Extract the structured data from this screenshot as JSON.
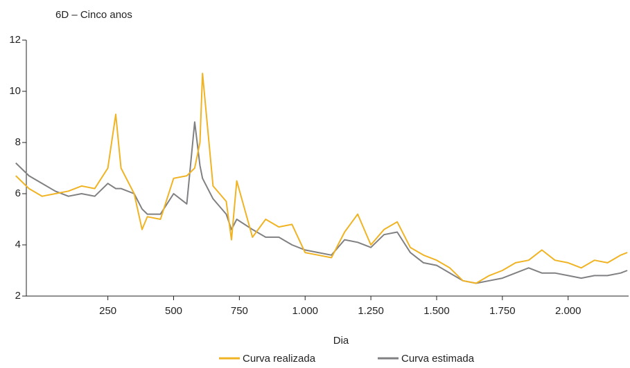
{
  "chart_data": {
    "type": "line",
    "title": "6D – Cinco anos",
    "x_label": "Dia",
    "x": [
      -100,
      -50,
      0,
      50,
      100,
      150,
      200,
      250,
      280,
      300,
      350,
      380,
      400,
      450,
      500,
      550,
      580,
      600,
      610,
      650,
      700,
      720,
      740,
      800,
      850,
      900,
      950,
      1000,
      1050,
      1100,
      1150,
      1200,
      1250,
      1300,
      1350,
      1400,
      1450,
      1500,
      1550,
      1600,
      1650,
      1700,
      1750,
      1800,
      1850,
      1900,
      1950,
      2000,
      2050,
      2100,
      2150,
      2200,
      2225
    ],
    "series": [
      {
        "name": "Curva realizada",
        "color": "#f0b323",
        "values": [
          6.7,
          6.2,
          5.9,
          6.0,
          6.1,
          6.3,
          6.2,
          7.0,
          9.1,
          7.0,
          6.0,
          4.6,
          5.1,
          5.0,
          6.6,
          6.7,
          7.0,
          8.0,
          10.7,
          6.3,
          5.7,
          4.2,
          6.5,
          4.3,
          5.0,
          4.7,
          4.8,
          3.7,
          3.6,
          3.5,
          4.5,
          5.2,
          4.0,
          4.6,
          4.9,
          3.9,
          3.6,
          3.4,
          3.1,
          2.6,
          2.5,
          2.8,
          3.0,
          3.3,
          3.4,
          3.8,
          3.4,
          3.3,
          3.1,
          3.4,
          3.3,
          3.6,
          3.7
        ]
      },
      {
        "name": "Curva estimada",
        "color": "#808083",
        "values": [
          7.2,
          6.7,
          6.4,
          6.1,
          5.9,
          6.0,
          5.9,
          6.4,
          6.2,
          6.2,
          6.0,
          5.4,
          5.2,
          5.2,
          6.0,
          5.6,
          8.8,
          7.1,
          6.6,
          5.8,
          5.2,
          4.6,
          5.0,
          4.6,
          4.3,
          4.3,
          4.0,
          3.8,
          3.7,
          3.6,
          4.2,
          4.1,
          3.9,
          4.4,
          4.5,
          3.7,
          3.3,
          3.2,
          2.9,
          2.6,
          2.5,
          2.6,
          2.7,
          2.9,
          3.1,
          2.9,
          2.9,
          2.8,
          2.7,
          2.8,
          2.8,
          2.9,
          3.0
        ]
      }
    ],
    "xlim": [
      -60,
      2230
    ],
    "xticks": [
      250,
      500,
      750,
      {
        "value": 1000,
        "label": "1.000"
      },
      {
        "value": 1250,
        "label": "1.250"
      },
      {
        "value": 1500,
        "label": "1.500"
      },
      {
        "value": 1750,
        "label": "1.750"
      },
      {
        "value": 2000,
        "label": "2.000"
      }
    ],
    "ylim": [
      2,
      12
    ],
    "yticks": [
      2,
      4,
      6,
      8,
      10,
      12
    ],
    "grid": false
  }
}
